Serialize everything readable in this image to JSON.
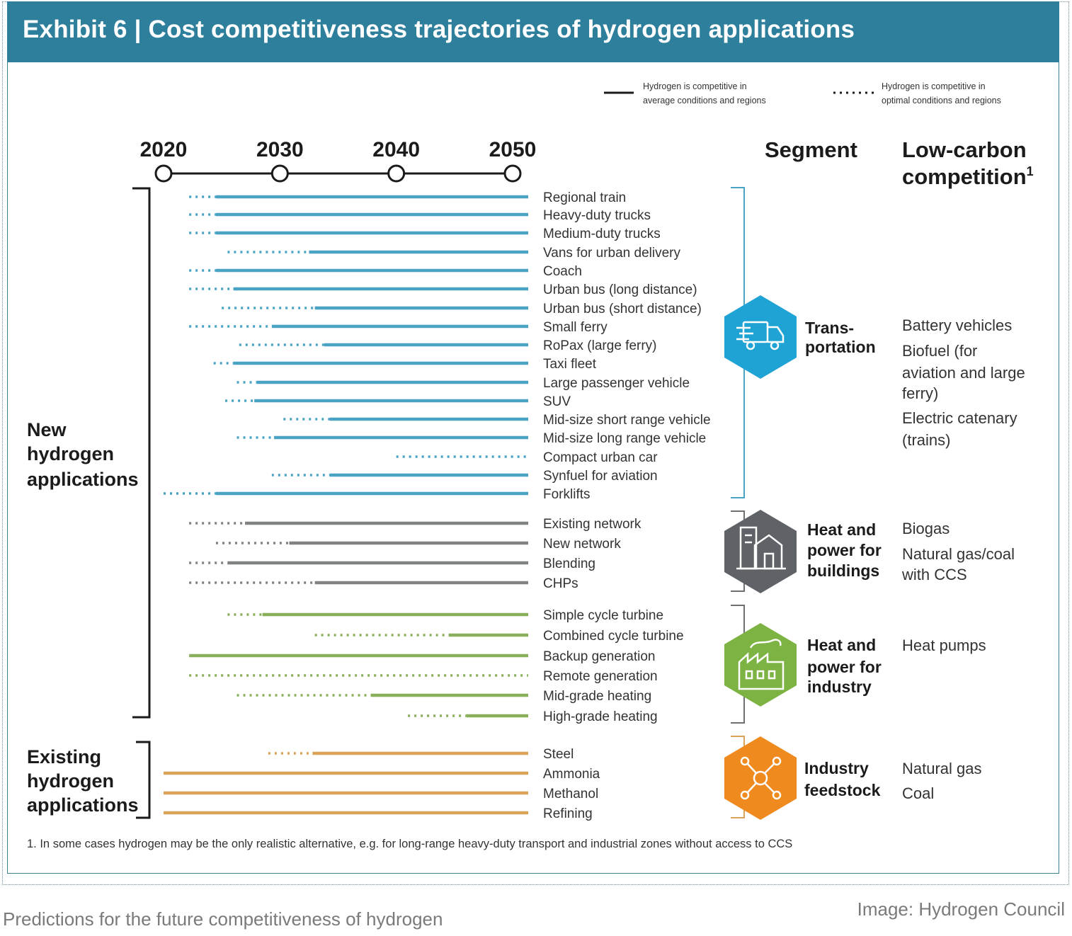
{
  "header": {
    "title": "Exhibit 6 | Cost competitiveness trajectories of hydrogen applications"
  },
  "legend": {
    "solid_label_line1": "Hydrogen is competitive in",
    "solid_label_line2": "average conditions and regions",
    "dotted_label_line1": "Hydrogen is competitive in",
    "dotted_label_line2": "optimal conditions and regions"
  },
  "columns": {
    "segment": "Segment",
    "competition_line1": "Low-carbon",
    "competition_line2": "competition",
    "competition_sup": "1"
  },
  "groups": {
    "new": [
      "New",
      "hydrogen",
      "applications"
    ],
    "existing": [
      "Existing",
      "hydrogen",
      "applications"
    ]
  },
  "segments": [
    {
      "name_lines": [
        "Trans-",
        "portation"
      ],
      "color": "#1fa3d4",
      "icon": "truck-icon",
      "competition": [
        "Battery vehicles",
        "Biofuel (for",
        "aviation and large",
        "ferry)",
        "Electric catenary",
        "(trains)"
      ]
    },
    {
      "name_lines": [
        "Heat and",
        "power for",
        "buildings"
      ],
      "color": "#5f6266",
      "icon": "building-icon",
      "competition": [
        "Biogas",
        "Natural gas/coal",
        "with CCS"
      ]
    },
    {
      "name_lines": [
        "Heat and",
        "power for",
        "industry"
      ],
      "color": "#7cb342",
      "icon": "factory-icon",
      "competition": [
        "Heat pumps"
      ]
    },
    {
      "name_lines": [
        "Industry",
        "feedstock"
      ],
      "color": "#ef8a1e",
      "icon": "molecule-icon",
      "competition": [
        "Natural gas",
        "Coal"
      ]
    }
  ],
  "footnote": "1.   In some cases hydrogen may be the only realistic alternative, e.g. for long-range heavy-duty transport and industrial zones without access to CCS",
  "caption": "Predictions for the future competitiveness of hydrogen",
  "credit": "Image: Hydrogen Council",
  "chart_data": {
    "type": "timeline",
    "title": "Cost competitiveness trajectories of hydrogen applications",
    "x_ticks": [
      2020,
      2030,
      2040,
      2050
    ],
    "xlim": [
      2020,
      2050
    ],
    "colors": {
      "transportation": "#4aa3c3",
      "buildings": "#808284",
      "industry": "#8aaf5a",
      "feedstock": "#d9a45a"
    },
    "series": [
      {
        "name": "Regional train",
        "segment": "transportation",
        "optimal_from": 2022.2,
        "average_from": 2024.5
      },
      {
        "name": "Heavy-duty trucks",
        "segment": "transportation",
        "optimal_from": 2022.2,
        "average_from": 2024.5
      },
      {
        "name": "Medium-duty trucks",
        "segment": "transportation",
        "optimal_from": 2022.2,
        "average_from": 2024.5
      },
      {
        "name": "Vans for urban delivery",
        "segment": "transportation",
        "optimal_from": 2025.5,
        "average_from": 2032.5
      },
      {
        "name": "Coach",
        "segment": "transportation",
        "optimal_from": 2022.2,
        "average_from": 2024.5
      },
      {
        "name": "Urban bus (long distance)",
        "segment": "transportation",
        "optimal_from": 2022.2,
        "average_from": 2026
      },
      {
        "name": "Urban bus (short distance)",
        "segment": "transportation",
        "optimal_from": 2025,
        "average_from": 2033
      },
      {
        "name": "Small ferry",
        "segment": "transportation",
        "optimal_from": 2022.2,
        "average_from": 2029.3
      },
      {
        "name": "RoPax (large ferry)",
        "segment": "transportation",
        "optimal_from": 2026.5,
        "average_from": 2033.8
      },
      {
        "name": "Taxi fleet",
        "segment": "transportation",
        "optimal_from": 2024.3,
        "average_from": 2026
      },
      {
        "name": "Large passenger vehicle",
        "segment": "transportation",
        "optimal_from": 2026.3,
        "average_from": 2028
      },
      {
        "name": "SUV",
        "segment": "transportation",
        "optimal_from": 2025.3,
        "average_from": 2027.8
      },
      {
        "name": "Mid-size short range vehicle",
        "segment": "transportation",
        "optimal_from": 2030.3,
        "average_from": 2034.3
      },
      {
        "name": "Mid-size long range vehicle",
        "segment": "transportation",
        "optimal_from": 2026.3,
        "average_from": 2029.5
      },
      {
        "name": "Compact urban car",
        "segment": "transportation",
        "optimal_from": 2040,
        "average_from": null
      },
      {
        "name": "Synfuel for aviation",
        "segment": "transportation",
        "optimal_from": 2029.3,
        "average_from": 2034.3
      },
      {
        "name": "Forklifts",
        "segment": "transportation",
        "optimal_from": 2020,
        "average_from": 2024.5
      },
      {
        "name": "Existing network",
        "segment": "buildings",
        "optimal_from": 2022.2,
        "average_from": 2027
      },
      {
        "name": "New network",
        "segment": "buildings",
        "optimal_from": 2024.5,
        "average_from": 2030.8
      },
      {
        "name": "Blending",
        "segment": "buildings",
        "optimal_from": 2022.2,
        "average_from": 2025.5
      },
      {
        "name": "CHPs",
        "segment": "buildings",
        "optimal_from": 2022.2,
        "average_from": 2033
      },
      {
        "name": "Simple cycle turbine",
        "segment": "industry",
        "optimal_from": 2025.5,
        "average_from": 2028.5
      },
      {
        "name": "Combined cycle turbine",
        "segment": "industry",
        "optimal_from": 2033,
        "average_from": 2044.5
      },
      {
        "name": "Backup generation",
        "segment": "industry",
        "optimal_from": null,
        "average_from": 2022.2
      },
      {
        "name": "Remote generation",
        "segment": "industry",
        "optimal_from": 2022.2,
        "average_from": null
      },
      {
        "name": "Mid-grade heating",
        "segment": "industry",
        "optimal_from": 2026.3,
        "average_from": 2037.8
      },
      {
        "name": "High-grade heating",
        "segment": "industry",
        "optimal_from": 2041,
        "average_from": 2046
      },
      {
        "name": "Steel",
        "segment": "feedstock",
        "optimal_from": 2029,
        "average_from": 2032.8
      },
      {
        "name": "Ammonia",
        "segment": "feedstock",
        "optimal_from": null,
        "average_from": 2020
      },
      {
        "name": "Methanol",
        "segment": "feedstock",
        "optimal_from": null,
        "average_from": 2020
      },
      {
        "name": "Refining",
        "segment": "feedstock",
        "optimal_from": null,
        "average_from": 2020
      }
    ]
  }
}
